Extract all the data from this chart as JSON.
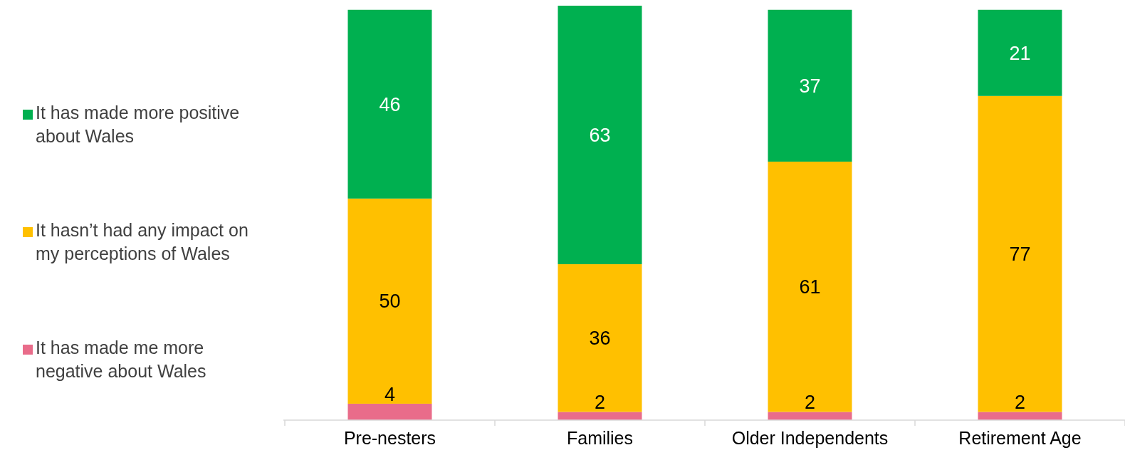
{
  "chart_data": {
    "type": "bar",
    "stacked": true,
    "data_labels": true,
    "legend": "left",
    "categories": [
      "Pre-nesters",
      "Families",
      "Older Independents",
      "Retirement Age"
    ],
    "series": [
      {
        "name": "It has made me more negative about Wales",
        "color": "#e96c8a",
        "values": [
          4,
          2,
          2,
          2
        ]
      },
      {
        "name": "It hasn’t had any impact on my perceptions of Wales",
        "color": "#ffc000",
        "values": [
          50,
          36,
          61,
          77
        ]
      },
      {
        "name": "It has made more positive about Wales",
        "color": "#00b050",
        "values": [
          46,
          63,
          37,
          21
        ]
      }
    ]
  }
}
